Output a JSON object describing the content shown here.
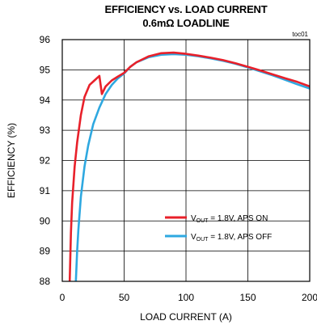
{
  "chart_data": {
    "type": "line",
    "title": "EFFICIENCY vs. LOAD CURRENT",
    "subtitle": "0.6mΩ LOADLINE",
    "annotation": "toc01",
    "xlabel": "LOAD CURRENT  (A)",
    "ylabel": "EFFICIENCY (%)",
    "xlim": [
      0,
      200
    ],
    "ylim": [
      88,
      96
    ],
    "xticks": [
      0,
      50,
      100,
      150,
      200
    ],
    "yticks": [
      88,
      89,
      90,
      91,
      92,
      93,
      94,
      95,
      96
    ],
    "grid": true,
    "legend_position": "lower-right",
    "series": [
      {
        "name_parts": [
          "V",
          "OUT",
          " = 1.8V, APS ON"
        ],
        "color": "#e8202a",
        "x": [
          6,
          7,
          8,
          10,
          12,
          15,
          18,
          22,
          26,
          30,
          32,
          35,
          40,
          45,
          50,
          55,
          60,
          70,
          80,
          90,
          100,
          110,
          120,
          130,
          140,
          150,
          160,
          170,
          180,
          190,
          200
        ],
        "y": [
          88.0,
          89.6,
          90.6,
          91.8,
          92.6,
          93.5,
          94.1,
          94.5,
          94.65,
          94.8,
          94.2,
          94.45,
          94.65,
          94.78,
          94.9,
          95.1,
          95.25,
          95.45,
          95.55,
          95.57,
          95.53,
          95.47,
          95.4,
          95.32,
          95.22,
          95.1,
          94.98,
          94.85,
          94.72,
          94.6,
          94.45
        ]
      },
      {
        "name_parts": [
          "V",
          "OUT",
          " = 1.8V, APS OFF"
        ],
        "color": "#2ea8e0",
        "x": [
          11,
          12,
          13,
          15,
          18,
          21,
          25,
          30,
          35,
          40,
          45,
          50,
          55,
          60,
          70,
          80,
          90,
          100,
          110,
          120,
          130,
          140,
          150,
          160,
          170,
          180,
          190,
          200
        ],
        "y": [
          88.0,
          89.0,
          89.7,
          90.8,
          91.8,
          92.5,
          93.2,
          93.75,
          94.2,
          94.5,
          94.72,
          94.88,
          95.1,
          95.25,
          95.42,
          95.5,
          95.52,
          95.5,
          95.45,
          95.38,
          95.3,
          95.2,
          95.08,
          94.95,
          94.82,
          94.67,
          94.52,
          94.38
        ]
      }
    ]
  }
}
